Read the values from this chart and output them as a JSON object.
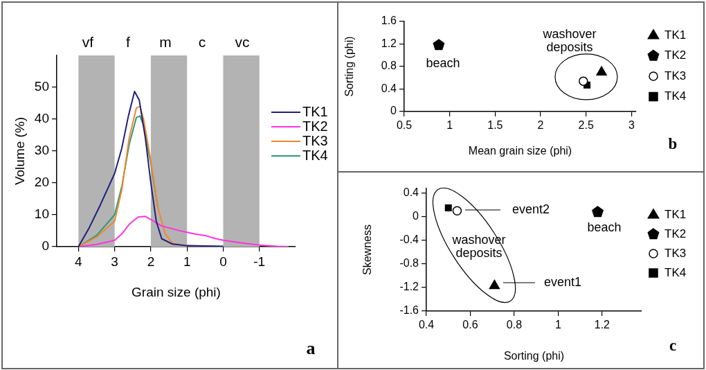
{
  "chart_data": [
    {
      "type": "line",
      "xlabel": "Grain size (phi)",
      "ylabel": "Volume (%)",
      "xlim": [
        4.6,
        -2.0
      ],
      "xticks": [
        4,
        3,
        2,
        1,
        0,
        -1
      ],
      "ylim": [
        0,
        60
      ],
      "yticks": [
        0,
        10,
        20,
        30,
        40,
        50
      ],
      "grid": false,
      "legend": "right",
      "annotations": [
        "vf",
        "f",
        "m",
        "c",
        "vc",
        "a"
      ],
      "bands": [
        {
          "axis": "x",
          "from": 4,
          "to": 3,
          "color": "#b3b3b3"
        },
        {
          "axis": "x",
          "from": 2,
          "to": 1,
          "color": "#b3b3b3"
        },
        {
          "axis": "x",
          "from": 0,
          "to": -1,
          "color": "#b3b3b3"
        }
      ],
      "series": [
        {
          "name": "TK1",
          "color": "#1f1f7a",
          "x": [
            4,
            3.7,
            3.4,
            3,
            2.8,
            2.62,
            2.45,
            2.32,
            2.15,
            2,
            1.85,
            1.7,
            1.4,
            1,
            0
          ],
          "values": [
            0,
            6,
            13,
            23,
            31,
            41,
            48.7,
            46,
            34,
            20,
            8,
            2.5,
            0.8,
            0.3,
            0.1
          ]
        },
        {
          "name": "TK2",
          "color": "#ff33dd",
          "x": [
            4,
            3.5,
            3,
            2.8,
            2.6,
            2.35,
            2.15,
            2,
            1.7,
            1.2,
            0.8,
            0.5,
            0.2,
            0,
            -0.5,
            -1,
            -1.5,
            -1.8
          ],
          "values": [
            0,
            0.7,
            2,
            4,
            7,
            9.3,
            9.5,
            8.5,
            6.5,
            5,
            4,
            3.5,
            2.5,
            2,
            1.2,
            0.5,
            0.1,
            0
          ]
        },
        {
          "name": "TK3",
          "color": "#f4862e",
          "x": [
            4,
            3.5,
            3,
            2.8,
            2.6,
            2.4,
            2.3,
            2.2,
            2,
            1.8,
            1.6,
            1.4,
            1,
            0
          ],
          "values": [
            0,
            3,
            8,
            18,
            34,
            43.5,
            44,
            40,
            27,
            12,
            4,
            1,
            0.3,
            0
          ]
        },
        {
          "name": "TK4",
          "color": "#2a9a78",
          "x": [
            4,
            3.5,
            3,
            2.8,
            2.6,
            2.4,
            2.3,
            2.2,
            2,
            1.8
          ],
          "values": [
            0,
            3.5,
            10,
            19,
            32,
            40.5,
            41,
            38,
            26,
            12
          ]
        }
      ]
    },
    {
      "type": "scatter",
      "xlabel": "Mean grain size (phi)",
      "ylabel": "Sorting (phi)",
      "xlim": [
        0.5,
        3.05
      ],
      "xticks": [
        0.5,
        1,
        1.5,
        2,
        2.5,
        3
      ],
      "ylim": [
        0,
        1.6
      ],
      "yticks": [
        0,
        0.4,
        0.8,
        1.2,
        1.6
      ],
      "grid": false,
      "legend": "right",
      "annotations": [
        "beach",
        "washover deposits",
        "b"
      ],
      "series": [
        {
          "name": "TK1",
          "color": "#000000",
          "marker": "triangle",
          "x": [
            2.67
          ],
          "values": [
            0.7
          ]
        },
        {
          "name": "TK2",
          "color": "#000000",
          "x": [
            0.88
          ],
          "values": [
            1.18
          ]
        },
        {
          "name": "TK3",
          "color": "#ffffff",
          "marker": "circle",
          "x": [
            2.47
          ],
          "values": [
            0.54
          ]
        },
        {
          "name": "TK4",
          "color": "#000000",
          "marker": "square",
          "x": [
            2.51
          ],
          "values": [
            0.47
          ]
        }
      ]
    },
    {
      "type": "scatter",
      "xlabel": "Sorting (phi)",
      "ylabel": "Skewness",
      "xlim": [
        0.4,
        1.38
      ],
      "xticks": [
        0.4,
        0.6,
        0.8,
        1,
        1.2
      ],
      "ylim": [
        -1.6,
        0.48
      ],
      "yticks": [
        -1.6,
        -1.2,
        -0.8,
        -0.4,
        0,
        0.4
      ],
      "grid": false,
      "legend": "right",
      "annotations": [
        "event2",
        "event1",
        "beach",
        "washover deposits",
        "c"
      ],
      "series": [
        {
          "name": "TK1",
          "color": "#000000",
          "marker": "triangle",
          "x": [
            0.71
          ],
          "values": [
            -1.17
          ]
        },
        {
          "name": "TK2",
          "color": "#000000",
          "x": [
            1.18
          ],
          "values": [
            0.08
          ]
        },
        {
          "name": "TK3",
          "color": "#ffffff",
          "marker": "circle",
          "x": [
            0.54
          ],
          "values": [
            0.1
          ]
        },
        {
          "name": "TK4",
          "color": "#000000",
          "marker": "square",
          "x": [
            0.5
          ],
          "values": [
            0.15
          ]
        }
      ]
    }
  ]
}
